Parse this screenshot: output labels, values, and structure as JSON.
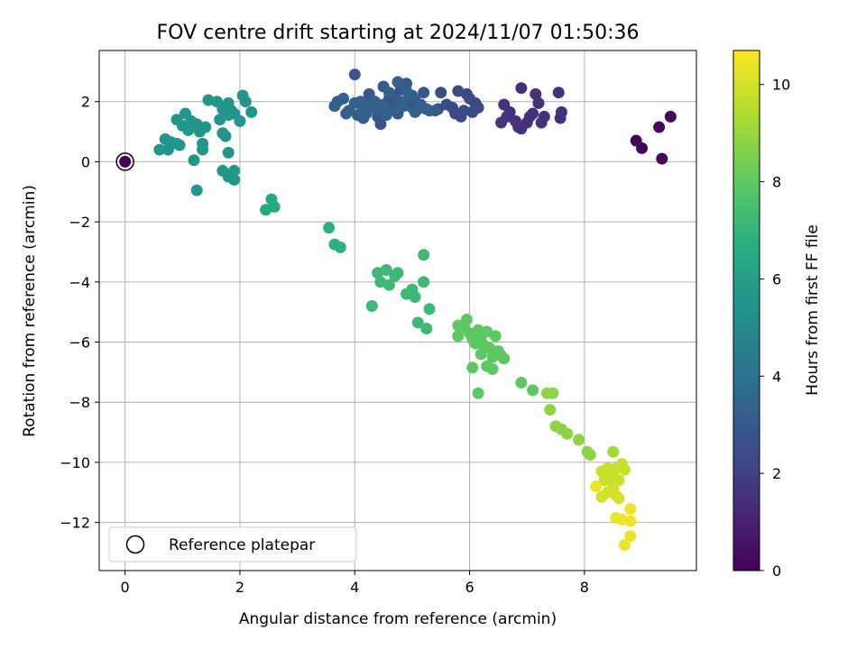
{
  "chart_data": {
    "type": "scatter",
    "title": "FOV centre drift starting at 2024/11/07 01:50:36",
    "xlabel": "Angular distance from reference (arcmin)",
    "ylabel": "Rotation from reference (arcmin)",
    "colorbar_label": "Hours from first FF file",
    "xlim": [
      -0.45,
      9.95
    ],
    "ylim": [
      -13.6,
      3.7
    ],
    "xticks": [
      0,
      2,
      4,
      6,
      8
    ],
    "yticks": [
      -12,
      -10,
      -8,
      -6,
      -4,
      -2,
      0,
      2
    ],
    "colorbar_range": [
      0,
      10.7
    ],
    "colorbar_ticks": [
      0,
      2,
      4,
      6,
      8,
      10
    ],
    "colormap": "viridis",
    "grid": true,
    "legend": {
      "position": "bottom-left",
      "entries": [
        "Reference platepar"
      ]
    },
    "reference_point": {
      "x": 0,
      "y": 0
    },
    "points": [
      [
        8.9,
        0.7,
        0.2
      ],
      [
        9.0,
        0.45,
        0.2
      ],
      [
        9.3,
        1.15,
        0.2
      ],
      [
        9.35,
        0.1,
        0.2
      ],
      [
        9.5,
        1.5,
        0.2
      ],
      [
        6.9,
        2.45,
        1.4
      ],
      [
        6.6,
        1.9,
        1.5
      ],
      [
        6.7,
        1.65,
        1.5
      ],
      [
        6.8,
        1.35,
        1.5
      ],
      [
        6.85,
        1.15,
        1.5
      ],
      [
        6.9,
        1.1,
        1.5
      ],
      [
        7.0,
        1.3,
        1.5
      ],
      [
        7.05,
        1.5,
        1.5
      ],
      [
        7.1,
        1.6,
        1.5
      ],
      [
        7.15,
        2.25,
        1.5
      ],
      [
        7.2,
        1.95,
        1.5
      ],
      [
        7.25,
        1.3,
        1.5
      ],
      [
        7.3,
        1.5,
        1.5
      ],
      [
        7.55,
        2.3,
        1.5
      ],
      [
        7.6,
        1.65,
        1.5
      ],
      [
        7.58,
        1.45,
        1.5
      ],
      [
        6.65,
        1.5,
        1.6
      ],
      [
        6.55,
        1.3,
        1.6
      ],
      [
        5.5,
        2.3,
        2.4
      ],
      [
        5.8,
        2.35,
        2.4
      ],
      [
        5.95,
        2.25,
        2.4
      ],
      [
        6.0,
        2.1,
        2.4
      ],
      [
        6.15,
        1.8,
        2.4
      ],
      [
        5.6,
        1.9,
        2.4
      ],
      [
        5.7,
        1.8,
        2.4
      ],
      [
        5.75,
        1.6,
        2.4
      ],
      [
        5.85,
        1.5,
        2.4
      ],
      [
        5.9,
        1.7,
        2.4
      ],
      [
        6.05,
        1.65,
        2.4
      ],
      [
        6.1,
        1.95,
        2.4
      ],
      [
        5.45,
        1.75,
        2.4
      ],
      [
        4.0,
        2.9,
        2.8
      ],
      [
        4.1,
        1.6,
        2.8
      ],
      [
        4.2,
        1.9,
        2.8
      ],
      [
        4.3,
        2.0,
        2.8
      ],
      [
        4.4,
        1.5,
        2.8
      ],
      [
        4.45,
        1.25,
        2.8
      ],
      [
        4.5,
        2.5,
        2.8
      ],
      [
        4.55,
        1.8,
        2.8
      ],
      [
        4.6,
        2.1,
        2.8
      ],
      [
        4.65,
        2.0,
        2.8
      ],
      [
        4.7,
        2.2,
        2.8
      ],
      [
        4.75,
        1.6,
        2.8
      ],
      [
        4.8,
        2.4,
        2.8
      ],
      [
        4.85,
        1.9,
        2.8
      ],
      [
        4.9,
        2.6,
        2.8
      ],
      [
        4.95,
        2.1,
        2.8
      ],
      [
        5.0,
        1.8,
        2.8
      ],
      [
        5.05,
        2.05,
        2.8
      ],
      [
        5.1,
        1.75,
        2.8
      ],
      [
        5.2,
        2.3,
        2.8
      ],
      [
        5.3,
        1.7,
        2.8
      ],
      [
        4.25,
        2.25,
        2.9
      ],
      [
        4.15,
        1.45,
        2.9
      ],
      [
        3.65,
        1.85,
        3.2
      ],
      [
        3.7,
        2.0,
        3.2
      ],
      [
        3.8,
        2.1,
        3.2
      ],
      [
        3.85,
        1.6,
        3.2
      ],
      [
        3.9,
        1.7,
        3.2
      ],
      [
        4.0,
        1.95,
        3.3
      ],
      [
        4.05,
        1.55,
        3.3
      ],
      [
        4.1,
        2.0,
        3.3
      ],
      [
        4.15,
        1.75,
        3.3
      ],
      [
        4.2,
        1.6,
        3.3
      ],
      [
        4.3,
        1.8,
        3.3
      ],
      [
        4.35,
        2.0,
        3.3
      ],
      [
        4.4,
        1.7,
        3.3
      ],
      [
        4.5,
        1.9,
        3.3
      ],
      [
        4.55,
        1.55,
        3.3
      ],
      [
        4.6,
        2.3,
        3.3
      ],
      [
        4.7,
        1.75,
        3.3
      ],
      [
        4.75,
        2.65,
        3.3
      ],
      [
        4.8,
        2.0,
        3.3
      ],
      [
        4.85,
        1.85,
        3.3
      ],
      [
        4.9,
        2.35,
        3.3
      ],
      [
        5.0,
        2.2,
        3.3
      ],
      [
        5.05,
        1.65,
        3.3
      ],
      [
        5.15,
        1.9,
        3.3
      ],
      [
        5.25,
        1.75,
        3.3
      ],
      [
        5.4,
        1.7,
        3.3
      ],
      [
        0.6,
        0.4,
        5.6
      ],
      [
        0.7,
        0.75,
        5.6
      ],
      [
        0.75,
        0.4,
        5.6
      ],
      [
        0.8,
        0.65,
        5.6
      ],
      [
        0.9,
        0.6,
        5.6
      ],
      [
        0.9,
        1.4,
        5.6
      ],
      [
        0.95,
        0.55,
        5.6
      ],
      [
        1.0,
        1.2,
        5.6
      ],
      [
        1.05,
        1.6,
        5.6
      ],
      [
        1.1,
        1.05,
        5.6
      ],
      [
        1.15,
        1.35,
        5.6
      ],
      [
        1.2,
        0.05,
        5.6
      ],
      [
        1.25,
        1.25,
        5.6
      ],
      [
        1.25,
        -0.95,
        5.6
      ],
      [
        1.3,
        1.0,
        5.6
      ],
      [
        1.35,
        0.6,
        5.6
      ],
      [
        1.35,
        0.4,
        5.6
      ],
      [
        1.4,
        1.15,
        5.6
      ],
      [
        1.45,
        2.05,
        5.6
      ],
      [
        1.6,
        2.0,
        5.6
      ],
      [
        1.65,
        1.4,
        5.6
      ],
      [
        1.7,
        1.75,
        5.6
      ],
      [
        1.7,
        0.95,
        5.6
      ],
      [
        1.75,
        0.85,
        5.6
      ],
      [
        1.8,
        1.55,
        5.6
      ],
      [
        1.8,
        1.95,
        5.6
      ],
      [
        1.8,
        0.3,
        5.6
      ],
      [
        1.85,
        1.7,
        5.6
      ],
      [
        1.9,
        1.6,
        5.6
      ],
      [
        2.0,
        1.35,
        5.6
      ],
      [
        2.05,
        2.2,
        5.6
      ],
      [
        2.1,
        2.0,
        5.6
      ],
      [
        2.2,
        1.65,
        5.6
      ],
      [
        1.7,
        -0.3,
        5.6
      ],
      [
        1.8,
        -0.5,
        5.6
      ],
      [
        1.9,
        -0.6,
        5.6
      ],
      [
        1.9,
        -0.3,
        5.6
      ],
      [
        2.45,
        -1.6,
        6.4
      ],
      [
        2.55,
        -1.25,
        6.4
      ],
      [
        2.6,
        -1.5,
        6.4
      ],
      [
        3.55,
        -2.2,
        6.8
      ],
      [
        3.65,
        -2.75,
        6.8
      ],
      [
        3.75,
        -2.85,
        6.8
      ],
      [
        4.3,
        -4.8,
        7.2
      ],
      [
        4.4,
        -3.7,
        7.2
      ],
      [
        4.45,
        -4.0,
        7.2
      ],
      [
        4.55,
        -3.6,
        7.2
      ],
      [
        4.6,
        -4.1,
        7.2
      ],
      [
        4.7,
        -3.8,
        7.2
      ],
      [
        4.75,
        -3.7,
        7.2
      ],
      [
        4.9,
        -4.4,
        7.2
      ],
      [
        5.0,
        -4.25,
        7.2
      ],
      [
        5.05,
        -4.5,
        7.2
      ],
      [
        5.1,
        -5.35,
        7.2
      ],
      [
        5.2,
        -3.1,
        7.2
      ],
      [
        5.2,
        -4.0,
        7.2
      ],
      [
        5.25,
        -5.55,
        7.2
      ],
      [
        5.3,
        -4.9,
        7.2
      ],
      [
        5.8,
        -5.45,
        8.0
      ],
      [
        5.8,
        -5.8,
        8.0
      ],
      [
        5.9,
        -5.5,
        8.0
      ],
      [
        5.95,
        -5.25,
        8.0
      ],
      [
        6.0,
        -5.7,
        8.0
      ],
      [
        6.05,
        -5.9,
        8.0
      ],
      [
        6.1,
        -6.05,
        8.0
      ],
      [
        6.15,
        -5.6,
        8.0
      ],
      [
        6.2,
        -5.8,
        8.0
      ],
      [
        6.25,
        -6.1,
        8.0
      ],
      [
        6.3,
        -5.65,
        8.0
      ],
      [
        6.35,
        -6.2,
        8.0
      ],
      [
        6.4,
        -6.5,
        8.0
      ],
      [
        6.45,
        -5.8,
        8.0
      ],
      [
        6.5,
        -6.3,
        8.0
      ],
      [
        6.55,
        -6.45,
        8.0
      ],
      [
        6.6,
        -6.55,
        8.0
      ],
      [
        6.2,
        -6.4,
        8.0
      ],
      [
        6.3,
        -6.8,
        8.0
      ],
      [
        6.4,
        -6.9,
        8.0
      ],
      [
        6.05,
        -6.85,
        8.0
      ],
      [
        6.15,
        -7.7,
        8.0
      ],
      [
        6.9,
        -7.35,
        8.0
      ],
      [
        7.1,
        -7.6,
        8.0
      ],
      [
        7.35,
        -7.7,
        8.8
      ],
      [
        7.45,
        -7.7,
        8.8
      ],
      [
        7.4,
        -8.25,
        8.8
      ],
      [
        7.5,
        -8.8,
        8.8
      ],
      [
        7.6,
        -8.9,
        8.8
      ],
      [
        7.7,
        -9.05,
        8.8
      ],
      [
        7.9,
        -9.25,
        8.8
      ],
      [
        8.05,
        -9.65,
        8.8
      ],
      [
        8.1,
        -9.75,
        8.8
      ],
      [
        8.5,
        -9.65,
        9.2
      ],
      [
        8.3,
        -10.3,
        9.8
      ],
      [
        8.4,
        -10.2,
        9.8
      ],
      [
        8.45,
        -10.5,
        9.8
      ],
      [
        8.5,
        -10.4,
        9.8
      ],
      [
        8.55,
        -10.2,
        9.8
      ],
      [
        8.6,
        -10.6,
        9.8
      ],
      [
        8.65,
        -10.05,
        9.8
      ],
      [
        8.7,
        -10.25,
        9.8
      ],
      [
        8.35,
        -10.6,
        9.8
      ],
      [
        8.4,
        -11.0,
        10.0
      ],
      [
        8.5,
        -10.85,
        10.0
      ],
      [
        8.55,
        -11.1,
        10.0
      ],
      [
        8.6,
        -11.2,
        10.0
      ],
      [
        8.3,
        -11.15,
        10.0
      ],
      [
        8.2,
        -10.8,
        10.4
      ],
      [
        8.55,
        -11.85,
        10.4
      ],
      [
        8.65,
        -11.9,
        10.4
      ],
      [
        8.7,
        -12.75,
        10.4
      ],
      [
        8.8,
        -11.55,
        10.4
      ],
      [
        8.8,
        -11.95,
        10.4
      ],
      [
        8.8,
        -12.45,
        10.4
      ]
    ]
  }
}
